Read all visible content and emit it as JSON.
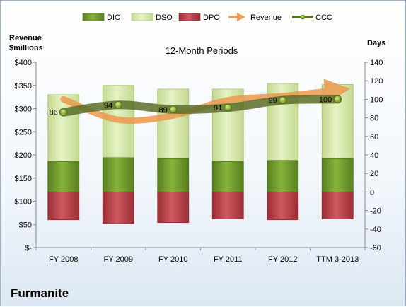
{
  "company": "Furmanite",
  "chart_data": {
    "type": "bar",
    "subtitle": "12-Month Periods",
    "ylabel_left": [
      "Revenue",
      "$millions"
    ],
    "ylabel_right": "Days",
    "categories": [
      "FY 2008",
      "FY 2009",
      "FY 2010",
      "FY 2011",
      "FY 2012",
      "TTM 3-2013"
    ],
    "left_axis": {
      "range": [
        0,
        400
      ],
      "ticks": [
        0,
        50,
        100,
        150,
        200,
        250,
        300,
        350,
        400
      ],
      "tick_labels": [
        "$-",
        "$50",
        "$100",
        "$150",
        "$200",
        "$250",
        "$300",
        "$350",
        "$400"
      ]
    },
    "right_axis": {
      "range": [
        -60,
        140
      ],
      "ticks": [
        -60,
        -40,
        -20,
        0,
        20,
        40,
        60,
        80,
        100,
        120,
        140
      ],
      "tick_labels": [
        "-60",
        "-40",
        "-20",
        "0",
        "20",
        "40",
        "60",
        "80",
        "100",
        "120",
        "140"
      ]
    },
    "series": [
      {
        "name": "DIO",
        "axis": "right",
        "kind": "stacked-bar",
        "color": "#6e9a2b",
        "values": [
          33,
          37,
          36,
          33,
          34,
          36
        ]
      },
      {
        "name": "DSO",
        "axis": "right",
        "kind": "stacked-bar",
        "color": "#d6e8a8",
        "values": [
          72,
          78,
          75,
          78,
          83,
          80
        ]
      },
      {
        "name": "DPO",
        "axis": "right",
        "kind": "negative-bar",
        "color": "#c0424a",
        "values": [
          -30,
          -34,
          -33,
          -29,
          -30,
          -29
        ]
      },
      {
        "name": "Revenue",
        "axis": "left",
        "kind": "line",
        "color": "#ed9c52",
        "values": [
          320,
          276,
          285,
          318,
          327,
          340
        ]
      },
      {
        "name": "CCC",
        "axis": "right",
        "kind": "line",
        "color": "#5b6f2a",
        "values": [
          86,
          94,
          89,
          91,
          99,
          100
        ]
      }
    ],
    "ccc_labels": [
      "86",
      "94",
      "89",
      "91",
      "99",
      "100"
    ],
    "legend_position": "top",
    "grid": false
  }
}
